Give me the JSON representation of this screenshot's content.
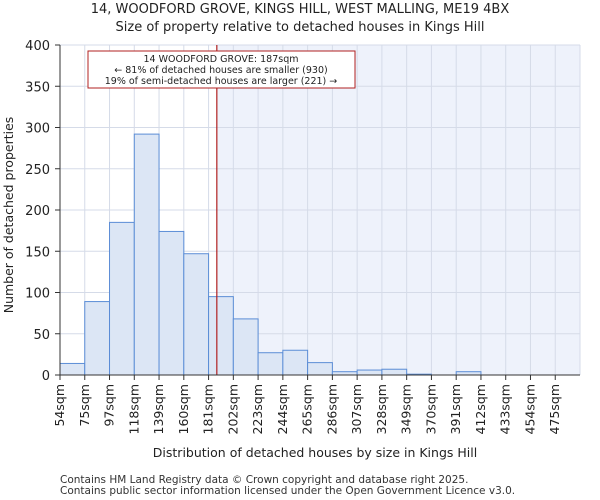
{
  "chart_data": {
    "type": "bar",
    "title": "14, WOODFORD GROVE, KINGS HILL, WEST MALLING, ME19 4BX",
    "subtitle": "Size of property relative to detached houses in Kings Hill",
    "xlabel": "Distribution of detached houses by size in Kings Hill",
    "ylabel": "Number of detached properties",
    "categories": [
      "54sqm",
      "75sqm",
      "97sqm",
      "118sqm",
      "139sqm",
      "160sqm",
      "181sqm",
      "202sqm",
      "223sqm",
      "244sqm",
      "265sqm",
      "286sqm",
      "307sqm",
      "328sqm",
      "349sqm",
      "370sqm",
      "391sqm",
      "412sqm",
      "433sqm",
      "454sqm",
      "475sqm"
    ],
    "values": [
      14,
      89,
      185,
      292,
      174,
      147,
      95,
      68,
      27,
      30,
      15,
      4,
      6,
      7,
      1,
      0,
      4,
      0,
      0,
      0,
      0
    ],
    "ylim": [
      0,
      400
    ],
    "yticks": [
      0,
      50,
      100,
      150,
      200,
      250,
      300,
      350,
      400
    ],
    "grid": true,
    "marker": {
      "value_sqm": 187,
      "label_lines": [
        "14 WOODFORD GROVE: 187sqm",
        "← 81% of detached houses are smaller (930)",
        "19% of semi-detached houses are larger (221) →"
      ]
    },
    "colors": {
      "bar_fill": "#dce6f5",
      "bar_stroke": "#5b8dd6",
      "marker_line": "#b02020",
      "annotation_border": "#b02020",
      "highlight_fill": "#eef2fb",
      "grid": "#d5dbe8"
    }
  },
  "footer": {
    "line1": "Contains HM Land Registry data © Crown copyright and database right 2025.",
    "line2": "Contains public sector information licensed under the Open Government Licence v3.0."
  }
}
